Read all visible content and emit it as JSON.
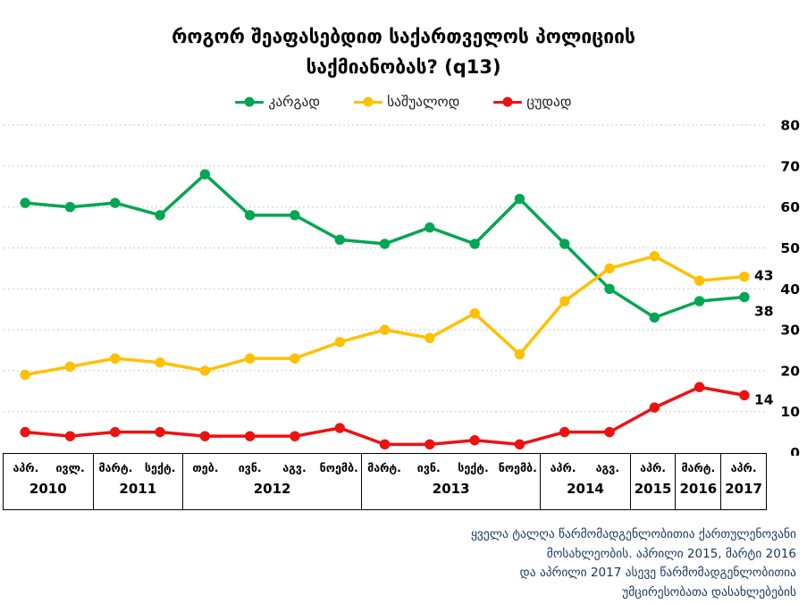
{
  "title": {
    "line1": "როგორ შეაფასებდით საქართველოს პოლიციის",
    "line2": "საქმიანობას? (q13)"
  },
  "legend": [
    {
      "key": "good",
      "label": "კარგად",
      "color": "#00A651"
    },
    {
      "key": "average",
      "label": "საშუალოდ",
      "color": "#FFC000"
    },
    {
      "key": "bad",
      "label": "ცუდად",
      "color": "#EE1111"
    }
  ],
  "chart_data": {
    "type": "line",
    "title": "როგორ შეაფასებდით საქართველოს პოლიციის საქმიანობას? (q13)",
    "categories": [
      "აპრ. 2010",
      "ივლ. 2010",
      "მარტ. 2011",
      "სექტ. 2011",
      "თებ. 2012",
      "ივნ. 2012",
      "აგვ. 2012",
      "ნოემბ. 2012",
      "მარტ. 2013",
      "ივნ. 2013",
      "სექტ. 2013",
      "ნოემბ. 2013",
      "აპრ. 2014",
      "აგვ. 2014",
      "აპრ. 2015",
      "მარტ. 2016",
      "აპრ. 2017"
    ],
    "x_groups": [
      {
        "year": "2010",
        "months": [
          "აპრ.",
          "ივლ."
        ]
      },
      {
        "year": "2011",
        "months": [
          "მარტ.",
          "სექტ."
        ]
      },
      {
        "year": "2012",
        "months": [
          "თებ.",
          "ივნ.",
          "აგვ.",
          "ნოემბ."
        ]
      },
      {
        "year": "2013",
        "months": [
          "მარტ.",
          "ივნ.",
          "სექტ.",
          "ნოემბ."
        ]
      },
      {
        "year": "2014",
        "months": [
          "აპრ.",
          "აგვ."
        ]
      },
      {
        "year": "2015",
        "months": [
          "აპრ."
        ]
      },
      {
        "year": "2016",
        "months": [
          "მარტ."
        ]
      },
      {
        "year": "2017",
        "months": [
          "აპრ."
        ]
      }
    ],
    "series": [
      {
        "key": "good",
        "name": "კარგად",
        "color": "#00A651",
        "values": [
          61,
          60,
          61,
          58,
          68,
          58,
          58,
          52,
          51,
          55,
          51,
          62,
          51,
          40,
          33,
          37,
          38
        ],
        "end_label": "38"
      },
      {
        "key": "average",
        "name": "საშუალოდ",
        "color": "#FFC000",
        "values": [
          19,
          21,
          23,
          22,
          20,
          23,
          23,
          27,
          30,
          28,
          34,
          24,
          37,
          45,
          48,
          42,
          43
        ],
        "end_label": "43"
      },
      {
        "key": "bad",
        "name": "ცუდად",
        "color": "#EE1111",
        "values": [
          5,
          4,
          5,
          5,
          4,
          4,
          4,
          6,
          2,
          2,
          3,
          2,
          5,
          5,
          11,
          16,
          14
        ],
        "end_label": "14"
      }
    ],
    "ylim": [
      0,
      80
    ],
    "yticks": [
      0,
      10,
      20,
      30,
      40,
      50,
      60,
      70,
      80
    ],
    "grid": true,
    "legend_position": "top"
  },
  "footnote": {
    "lines": [
      "ყველა ტალღა წარმომადგენლობითია ქართულენოვანი",
      "მოსახლეობის. აპრილი 2015, მარტი 2016",
      "და აპრილი 2017 ასევე წარმომადგენლობითია",
      "უმცირესობათა დასახლებების"
    ]
  }
}
